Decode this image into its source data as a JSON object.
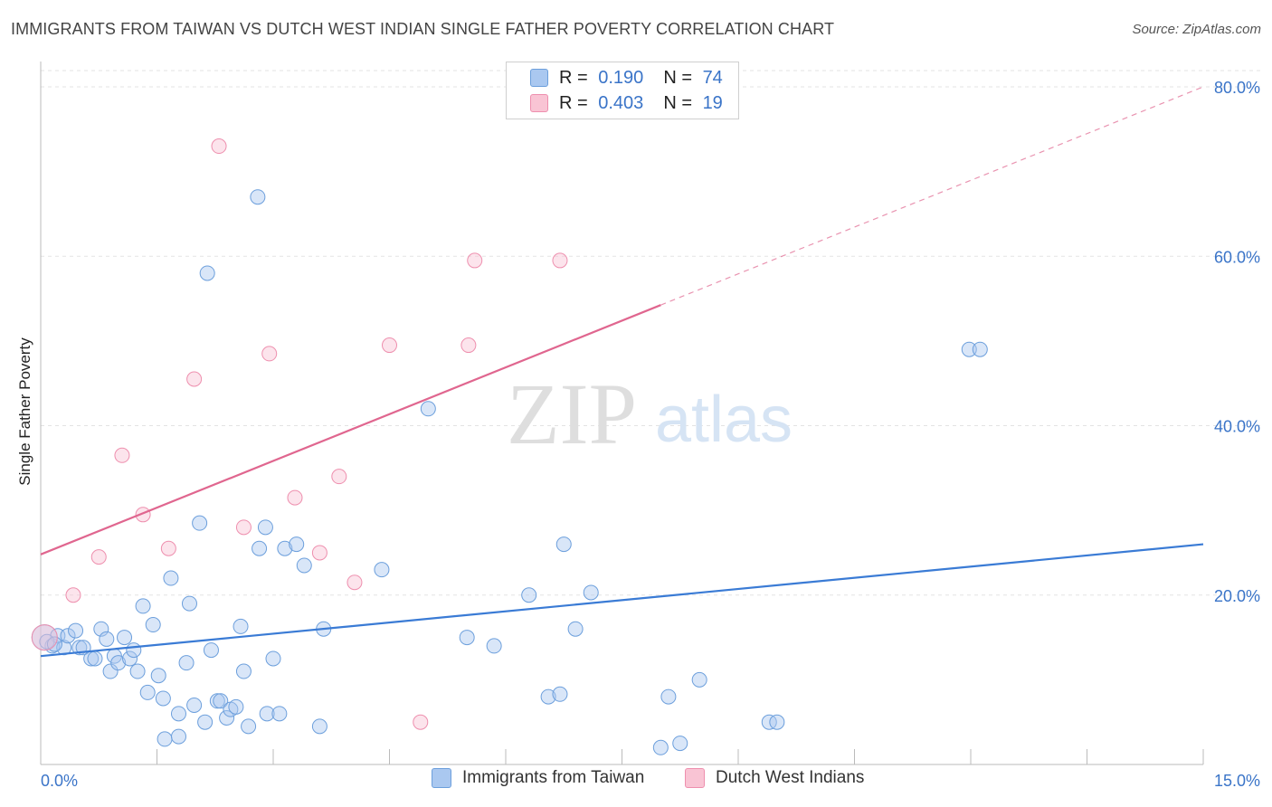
{
  "header": {
    "title": "IMMIGRANTS FROM TAIWAN VS DUTCH WEST INDIAN SINGLE FATHER POVERTY CORRELATION CHART",
    "source": "Source: ZipAtlas.com"
  },
  "watermark": {
    "zip": "ZIP",
    "atlas": "atlas"
  },
  "legend": {
    "rows": [
      {
        "r_label": "R =",
        "r_value": "0.190",
        "n_label": "N =",
        "n_value": "74",
        "color": "#aac8f0",
        "border": "#6c9fdc"
      },
      {
        "r_label": "R =",
        "r_value": "0.403",
        "n_label": "N =",
        "n_value": "19",
        "color": "#f9c4d4",
        "border": "#ee8fae"
      }
    ]
  },
  "colors": {
    "blue": "#3a7bd5",
    "pink": "#e0668f",
    "grid": "#e3e3e3",
    "tick_label": "#3a74c8"
  },
  "chart_data": {
    "type": "scatter",
    "title": "IMMIGRANTS FROM TAIWAN VS DUTCH WEST INDIAN SINGLE FATHER POVERTY CORRELATION CHART",
    "xlabel": "",
    "ylabel": "Single Father Poverty",
    "xlim": [
      0,
      15
    ],
    "ylim": [
      0,
      80
    ],
    "x_tick_labels": [
      "0.0%",
      "15.0%"
    ],
    "y_ticks": [
      20,
      40,
      60,
      80
    ],
    "y_tick_labels": [
      "20.0%",
      "40.0%",
      "60.0%",
      "80.0%"
    ],
    "grid": true,
    "legend_position": "top-center",
    "series": [
      {
        "name": "Immigrants from Taiwan",
        "color": "#3a7bd5",
        "trend": {
          "x": [
            0,
            15
          ],
          "y": [
            12.8,
            26.0
          ]
        },
        "points": [
          [
            0.05,
            15.0
          ],
          [
            0.15,
            14.0
          ],
          [
            0.22,
            15.2
          ],
          [
            0.3,
            13.8
          ],
          [
            0.35,
            15.2
          ],
          [
            0.45,
            15.8
          ],
          [
            0.5,
            13.8
          ],
          [
            0.55,
            13.8
          ],
          [
            0.65,
            12.5
          ],
          [
            0.7,
            12.5
          ],
          [
            0.78,
            16.0
          ],
          [
            0.85,
            14.8
          ],
          [
            0.9,
            11.0
          ],
          [
            0.95,
            12.8
          ],
          [
            1.0,
            12.0
          ],
          [
            1.08,
            15.0
          ],
          [
            1.15,
            12.5
          ],
          [
            1.2,
            13.5
          ],
          [
            1.25,
            11.0
          ],
          [
            1.32,
            18.7
          ],
          [
            1.38,
            8.5
          ],
          [
            1.45,
            16.5
          ],
          [
            1.52,
            10.5
          ],
          [
            1.58,
            7.8
          ],
          [
            1.6,
            3.0
          ],
          [
            1.68,
            22.0
          ],
          [
            1.78,
            6.0
          ],
          [
            1.78,
            3.3
          ],
          [
            1.88,
            12.0
          ],
          [
            1.92,
            19.0
          ],
          [
            1.98,
            7.0
          ],
          [
            2.05,
            28.5
          ],
          [
            2.12,
            5.0
          ],
          [
            2.15,
            58.0
          ],
          [
            2.2,
            13.5
          ],
          [
            2.28,
            7.5
          ],
          [
            2.32,
            7.5
          ],
          [
            2.4,
            5.5
          ],
          [
            2.45,
            6.5
          ],
          [
            2.52,
            6.8
          ],
          [
            2.58,
            16.3
          ],
          [
            2.62,
            11.0
          ],
          [
            2.68,
            4.5
          ],
          [
            2.8,
            67.0
          ],
          [
            2.82,
            25.5
          ],
          [
            2.9,
            28.0
          ],
          [
            2.92,
            6.0
          ],
          [
            3.0,
            12.5
          ],
          [
            3.08,
            6.0
          ],
          [
            3.15,
            25.5
          ],
          [
            3.3,
            26.0
          ],
          [
            3.4,
            23.5
          ],
          [
            3.6,
            4.5
          ],
          [
            3.65,
            16.0
          ],
          [
            4.4,
            23.0
          ],
          [
            5.0,
            42.0
          ],
          [
            5.5,
            15.0
          ],
          [
            5.85,
            14.0
          ],
          [
            6.3,
            20.0
          ],
          [
            6.55,
            8.0
          ],
          [
            6.7,
            8.3
          ],
          [
            6.75,
            26.0
          ],
          [
            6.9,
            16.0
          ],
          [
            7.1,
            20.3
          ],
          [
            8.0,
            2.0
          ],
          [
            8.1,
            8.0
          ],
          [
            8.25,
            2.5
          ],
          [
            8.5,
            10.0
          ],
          [
            9.4,
            5.0
          ],
          [
            9.5,
            5.0
          ],
          [
            11.98,
            49.0
          ],
          [
            12.12,
            49.0
          ],
          [
            0.08,
            14.5
          ],
          [
            0.18,
            14.2
          ]
        ]
      },
      {
        "name": "Dutch West Indians",
        "color": "#e0668f",
        "trend": {
          "x": [
            0,
            15
          ],
          "y": [
            24.8,
            80.0
          ],
          "solid_until_x": 8.0
        },
        "points": [
          [
            0.05,
            15.0
          ],
          [
            0.42,
            20.0
          ],
          [
            0.75,
            24.5
          ],
          [
            1.05,
            36.5
          ],
          [
            1.32,
            29.5
          ],
          [
            1.65,
            25.5
          ],
          [
            1.98,
            45.5
          ],
          [
            2.3,
            73.0
          ],
          [
            2.62,
            28.0
          ],
          [
            2.95,
            48.5
          ],
          [
            3.28,
            31.5
          ],
          [
            3.6,
            25.0
          ],
          [
            3.85,
            34.0
          ],
          [
            4.05,
            21.5
          ],
          [
            4.5,
            49.5
          ],
          [
            4.9,
            5.0
          ],
          [
            5.52,
            49.5
          ],
          [
            5.6,
            59.5
          ],
          [
            6.7,
            59.5
          ]
        ]
      }
    ]
  },
  "bottom_legend": {
    "items": [
      {
        "label": "Immigrants from Taiwan",
        "color": "#aac8f0",
        "border": "#6c9fdc"
      },
      {
        "label": "Dutch West Indians",
        "color": "#f9c4d4",
        "border": "#ee8fae"
      }
    ]
  }
}
